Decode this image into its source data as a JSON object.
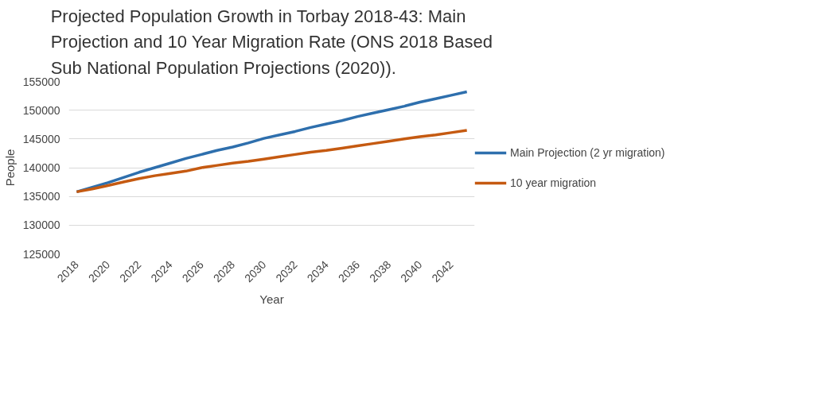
{
  "chart_data": {
    "type": "line",
    "title": "Projected Population Growth in Torbay 2018-43: Main Projection and 10 Year Migration Rate (ONS 2018 Based Sub National Population Projections (2020)).",
    "xlabel": "Year",
    "ylabel": "People",
    "categories": [
      "2018",
      null,
      "2020",
      null,
      "2022",
      null,
      "2024",
      null,
      "2026",
      null,
      "2028",
      null,
      "2030",
      null,
      "2032",
      null,
      "2034",
      null,
      "2036",
      null,
      "2038",
      null,
      "2040",
      null,
      "2042",
      null
    ],
    "series": [
      {
        "name": "Main Projection (2 yr migration)",
        "color": "#2e6fad",
        "values": [
          135800,
          136600,
          137400,
          138300,
          139200,
          140000,
          140800,
          141600,
          142300,
          143000,
          143600,
          144300,
          145100,
          145700,
          146300,
          147000,
          147600,
          148200,
          148900,
          149500,
          150100,
          150700,
          151400,
          152000,
          152600,
          153200
        ]
      },
      {
        "name": "10 year migration",
        "color": "#c55a11",
        "values": [
          135800,
          136300,
          136900,
          137500,
          138100,
          138600,
          139000,
          139400,
          140000,
          140400,
          140800,
          141100,
          141500,
          141900,
          142300,
          142700,
          143000,
          143400,
          143800,
          144200,
          144600,
          145000,
          145400,
          145700,
          146100,
          146500
        ]
      }
    ],
    "ylim": [
      125000,
      155000
    ],
    "yticks": [
      125000,
      130000,
      135000,
      140000,
      145000,
      150000,
      155000
    ],
    "grid": "y",
    "legend": "right",
    "marker": "none",
    "line_style": "solid"
  }
}
